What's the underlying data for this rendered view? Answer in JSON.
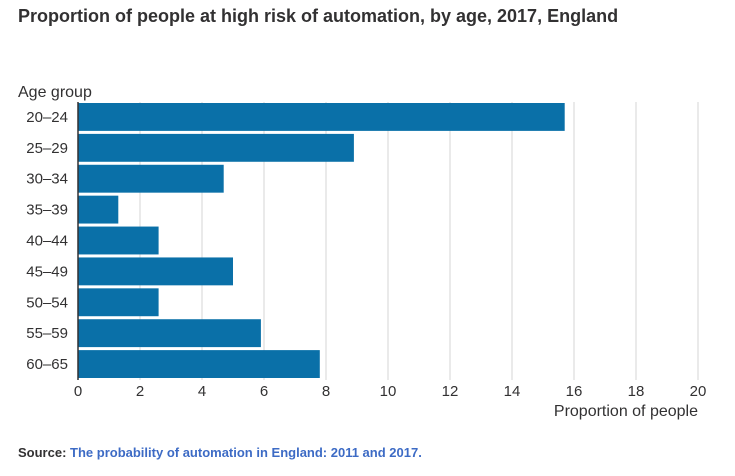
{
  "title": "Proportion of people at high risk of automation, by age, 2017, England",
  "source": {
    "label": "Source:",
    "link_text": "The probability of automation in England: 2011 and 2017."
  },
  "colors": {
    "bar": "#0a70a8",
    "grid": "#d6d6d6",
    "axis": "#323132",
    "text": "#323132",
    "link": "#3d6bc5"
  },
  "chart_data": {
    "type": "bar",
    "orientation": "horizontal",
    "ylabel": "Age group",
    "xlabel": "Proportion of people",
    "categories": [
      "20–24",
      "25–29",
      "30–34",
      "35–39",
      "40–44",
      "45–49",
      "50–54",
      "55–59",
      "60–65"
    ],
    "values": [
      15.7,
      8.9,
      4.7,
      1.3,
      2.6,
      5.0,
      2.6,
      5.9,
      7.8
    ],
    "xlim": [
      0,
      20
    ],
    "xticks": [
      0,
      2,
      4,
      6,
      8,
      10,
      12,
      14,
      16,
      18,
      20
    ],
    "grid": true
  }
}
